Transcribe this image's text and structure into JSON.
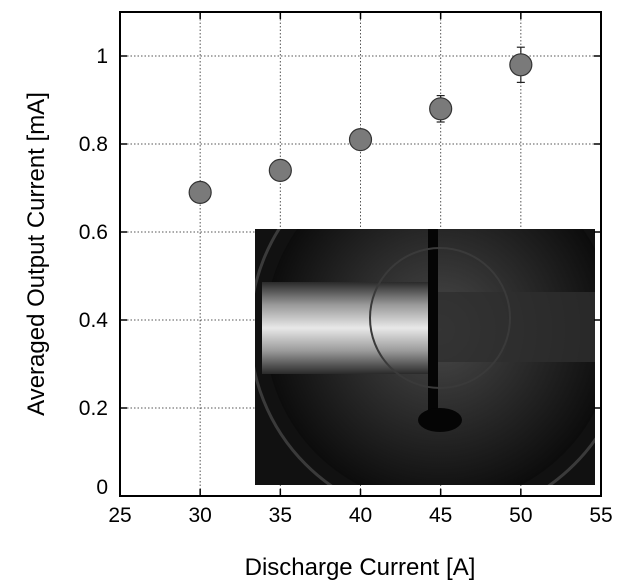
{
  "chart_data": {
    "type": "scatter",
    "title": "",
    "xlabel": "Discharge Current [A]",
    "ylabel": "Averaged Output Current [mA]",
    "xlim": [
      25,
      55
    ],
    "ylim": [
      0,
      1.1
    ],
    "x_ticks": [
      25,
      30,
      35,
      40,
      45,
      50,
      55
    ],
    "y_ticks": [
      0,
      0.2,
      0.4,
      0.6,
      0.8,
      1
    ],
    "grid": true,
    "series": [
      {
        "x": [
          30,
          35,
          40,
          45,
          50
        ],
        "y": [
          0.69,
          0.74,
          0.81,
          0.88,
          0.98
        ],
        "y_err": [
          0.02,
          0.02,
          0.02,
          0.03,
          0.04
        ],
        "color": "#7a7a7a"
      }
    ],
    "inset": "photograph of the discharge"
  }
}
